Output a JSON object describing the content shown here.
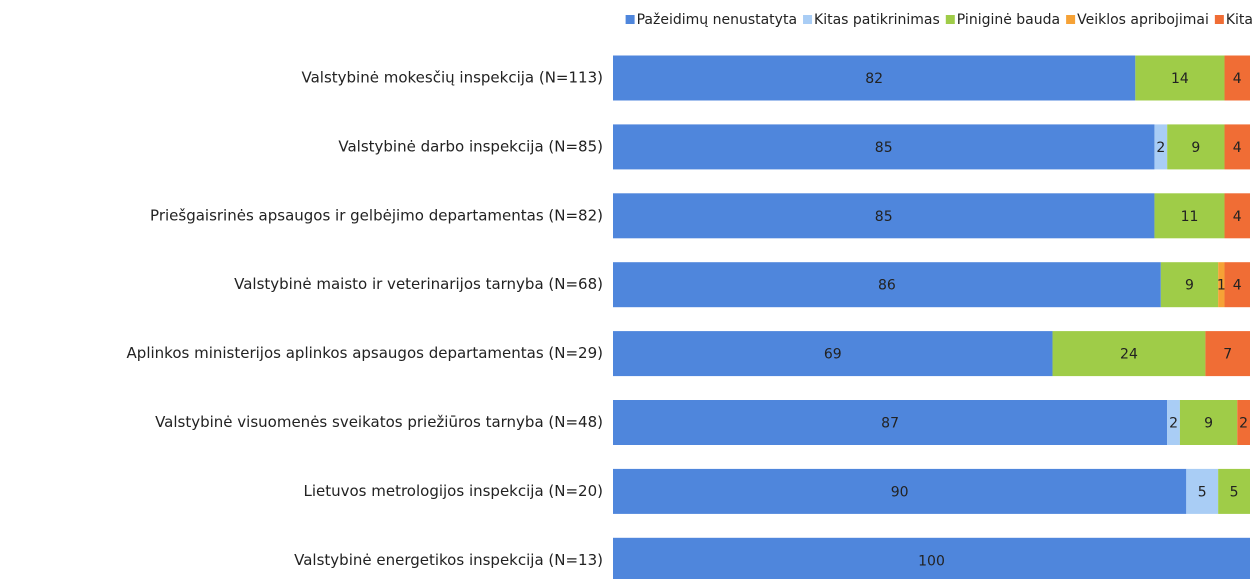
{
  "chart_data": {
    "type": "stacked-barh",
    "categories": [
      "Valstybinė mokesčių inspekcija (N=113)",
      "Valstybinė darbo inspekcija (N=85)",
      "Priešgaisrinės apsaugos ir gelbėjimo departamentas (N=82)",
      "Valstybinė maisto ir veterinarijos tarnyba (N=68)",
      "Aplinkos ministerijos aplinkos apsaugos departamentas (N=29)",
      "Valstybinė visuomenės sveikatos priežiūros tarnyba (N=48)",
      "Lietuvos metrologijos inspekcija (N=20)",
      "Valstybinė energetikos inspekcija (N=13)"
    ],
    "series": [
      {
        "name": "Pažeidimų nenustatyta",
        "color": "#4f86dc",
        "values": [
          82,
          85,
          85,
          86,
          69,
          87,
          90,
          100
        ]
      },
      {
        "name": "Kitas patikrinimas",
        "color": "#a9cdf5",
        "values": [
          null,
          2,
          null,
          null,
          null,
          2,
          5,
          null
        ]
      },
      {
        "name": "Piniginė bauda",
        "color": "#9fcc48",
        "values": [
          14,
          9,
          11,
          9,
          24,
          9,
          5,
          null
        ]
      },
      {
        "name": "Veiklos apribojimai",
        "color": "#f6a236",
        "values": [
          null,
          null,
          null,
          1,
          null,
          null,
          null,
          null
        ]
      },
      {
        "name": "Kita",
        "color": "#f06d35",
        "values": [
          4,
          4,
          4,
          4,
          7,
          2,
          null,
          null
        ]
      }
    ],
    "xlim": [
      0,
      100
    ],
    "legend": "top-right"
  }
}
